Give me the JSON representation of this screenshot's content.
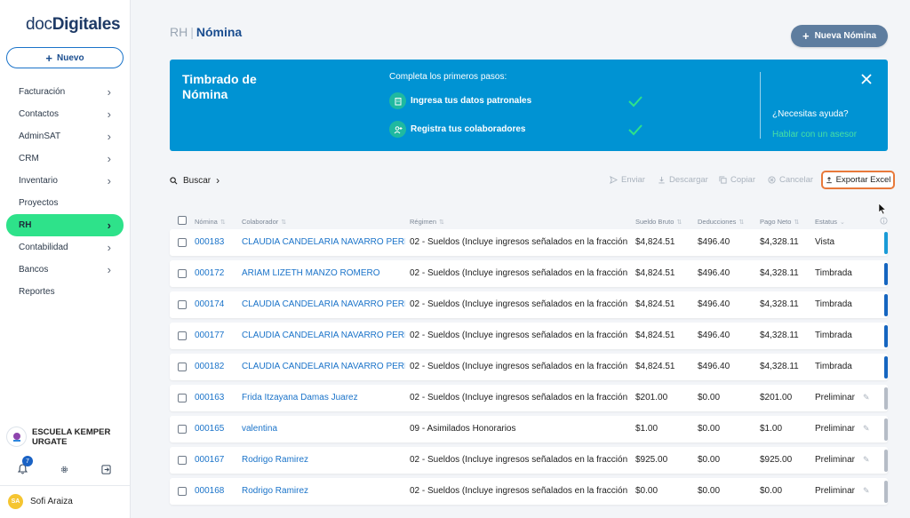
{
  "sidebar": {
    "logo_part1": "doc",
    "logo_part2": "Digitales",
    "new_label": "Nuevo",
    "items": [
      {
        "label": "Facturación",
        "chevron": true
      },
      {
        "label": "Contactos",
        "chevron": true
      },
      {
        "label": "AdminSAT",
        "chevron": true
      },
      {
        "label": "CRM",
        "chevron": true
      },
      {
        "label": "Inventario",
        "chevron": true
      },
      {
        "label": "Proyectos",
        "chevron": false
      },
      {
        "label": "RH",
        "chevron": true,
        "active": true
      },
      {
        "label": "Contabilidad",
        "chevron": true
      },
      {
        "label": "Bancos",
        "chevron": true
      },
      {
        "label": "Reportes",
        "chevron": false
      }
    ],
    "org_name": "ESCUELA KEMPER URGATE",
    "notifications_count": "7",
    "user_initials": "SA",
    "user_name": "Sofi Araiza"
  },
  "header": {
    "section": "RH",
    "separator": "|",
    "page": "Nómina",
    "new_button": "Nueva Nómina"
  },
  "banner": {
    "title": "Timbrado de Nómina",
    "steps_title": "Completa los primeros pasos:",
    "step1": "Ingresa tus datos patronales",
    "step2": "Registra tus colaboradores",
    "help_question": "¿Necesitas ayuda?",
    "help_link": "Hablar con un asesor"
  },
  "toolbar": {
    "search": "Buscar",
    "send": "Enviar",
    "download": "Descargar",
    "copy": "Copiar",
    "cancel": "Cancelar",
    "export": "Exportar Excel"
  },
  "table": {
    "columns": [
      "Nómina",
      "Colaborador",
      "Régimen",
      "Sueldo Bruto",
      "Deducciones",
      "Pago Neto",
      "Estatus"
    ],
    "rows": [
      {
        "nomina": "000183",
        "colaborador": "CLAUDIA CANDELARIA NAVARRO PEREZ",
        "regimen": "02 - Sueldos (Incluye ingresos señalados en la fracción",
        "bruto": "$4,824.51",
        "deducciones": "$496.40",
        "neto": "$4,328.11",
        "estatus": "Vista",
        "bar_color": "#1a9bd7"
      },
      {
        "nomina": "000172",
        "colaborador": "ARIAM LIZETH MANZO ROMERO",
        "regimen": "02 - Sueldos (Incluye ingresos señalados en la fracción",
        "bruto": "$4,824.51",
        "deducciones": "$496.40",
        "neto": "$4,328.11",
        "estatus": "Timbrada",
        "bar_color": "#1565c0"
      },
      {
        "nomina": "000174",
        "colaborador": "CLAUDIA CANDELARIA NAVARRO PEREZ",
        "regimen": "02 - Sueldos (Incluye ingresos señalados en la fracción",
        "bruto": "$4,824.51",
        "deducciones": "$496.40",
        "neto": "$4,328.11",
        "estatus": "Timbrada",
        "bar_color": "#1565c0"
      },
      {
        "nomina": "000177",
        "colaborador": "CLAUDIA CANDELARIA NAVARRO PEREZ",
        "regimen": "02 - Sueldos (Incluye ingresos señalados en la fracción",
        "bruto": "$4,824.51",
        "deducciones": "$496.40",
        "neto": "$4,328.11",
        "estatus": "Timbrada",
        "bar_color": "#1565c0"
      },
      {
        "nomina": "000182",
        "colaborador": "CLAUDIA CANDELARIA NAVARRO PEREZ",
        "regimen": "02 - Sueldos (Incluye ingresos señalados en la fracción",
        "bruto": "$4,824.51",
        "deducciones": "$496.40",
        "neto": "$4,328.11",
        "estatus": "Timbrada",
        "bar_color": "#1565c0"
      },
      {
        "nomina": "000163",
        "colaborador": "Frida Itzayana Damas Juarez",
        "regimen": "02 - Sueldos (Incluye ingresos señalados en la fracción",
        "bruto": "$201.00",
        "deducciones": "$0.00",
        "neto": "$201.00",
        "estatus": "Preliminar",
        "bar_color": "#b5bcc6",
        "editable": true
      },
      {
        "nomina": "000165",
        "colaborador": "valentina",
        "regimen": "09 - Asimilados Honorarios",
        "bruto": "$1.00",
        "deducciones": "$0.00",
        "neto": "$1.00",
        "estatus": "Preliminar",
        "bar_color": "#b5bcc6",
        "editable": true
      },
      {
        "nomina": "000167",
        "colaborador": "Rodrigo Ramirez",
        "regimen": "02 - Sueldos (Incluye ingresos señalados en la fracción",
        "bruto": "$925.00",
        "deducciones": "$0.00",
        "neto": "$925.00",
        "estatus": "Preliminar",
        "bar_color": "#b5bcc6",
        "editable": true
      },
      {
        "nomina": "000168",
        "colaborador": "Rodrigo Ramirez",
        "regimen": "02 - Sueldos (Incluye ingresos señalados en la fracción",
        "bruto": "$0.00",
        "deducciones": "$0.00",
        "neto": "$0.00",
        "estatus": "Preliminar",
        "bar_color": "#b5bcc6",
        "editable": true
      }
    ]
  },
  "colors": {
    "accent_green": "#2ee28a",
    "banner_blue": "#0093d3",
    "link_blue": "#1a73c9",
    "export_border": "#e8793a"
  }
}
